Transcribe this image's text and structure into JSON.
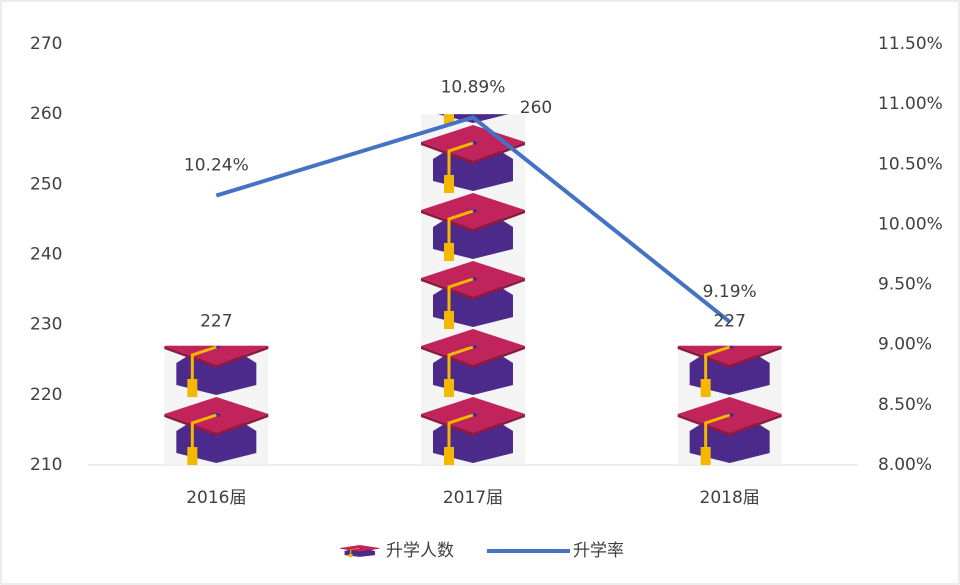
{
  "chart_data": {
    "type": "bar",
    "categories": [
      "2016届",
      "2017届",
      "2018届"
    ],
    "series": [
      {
        "name": "升学人数",
        "type": "bar",
        "color": "#c0245a",
        "values": [
          227,
          260,
          227
        ]
      },
      {
        "name": "升学率",
        "type": "line",
        "axis": "y2",
        "color": "#4472c4",
        "values": [
          10.24,
          10.89,
          9.19
        ],
        "value_labels": [
          "10.24%",
          "10.89%",
          "9.19%"
        ]
      }
    ],
    "ylim": [
      210,
      270
    ],
    "yticks": [
      210,
      220,
      230,
      240,
      250,
      260,
      270
    ],
    "y2lim": [
      8,
      11.5
    ],
    "y2ticks": [
      {
        "value": 8,
        "label": "8.00%"
      },
      {
        "value": 8.5,
        "label": "8.50%"
      },
      {
        "value": 9,
        "label": "9.00%"
      },
      {
        "value": 9.5,
        "label": "9.50%"
      },
      {
        "value": 10,
        "label": "10.00%"
      },
      {
        "value": 10.5,
        "label": "10.50%"
      },
      {
        "value": 11,
        "label": "11.00%"
      },
      {
        "value": 11.5,
        "label": "11.50%"
      }
    ],
    "legend": "bottom"
  }
}
